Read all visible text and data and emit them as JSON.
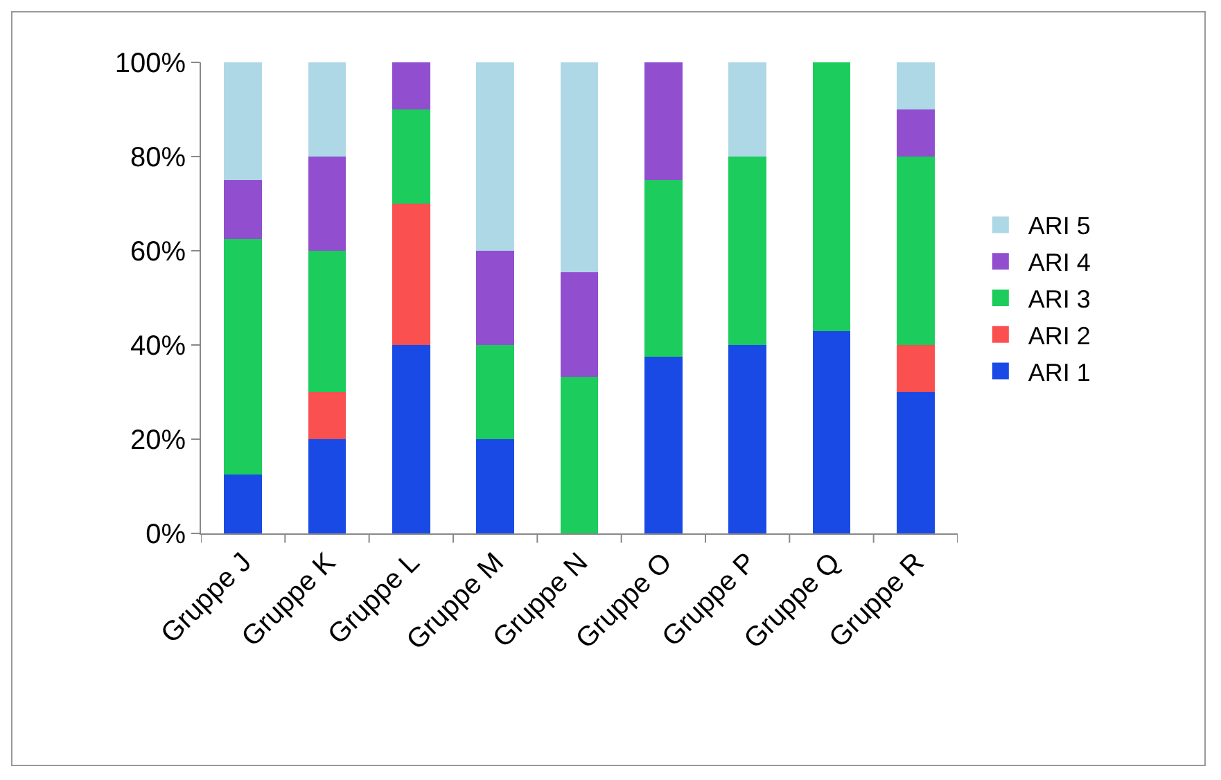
{
  "chart_data": {
    "type": "bar",
    "stacked": true,
    "categories": [
      "Gruppe J",
      "Gruppe K",
      "Gruppe L",
      "Gruppe M",
      "Gruppe N",
      "Gruppe O",
      "Gruppe P",
      "Gruppe Q",
      "Gruppe R"
    ],
    "series": [
      {
        "name": "ARI 1",
        "color": "#1a4ae6",
        "values": [
          12.5,
          20,
          40,
          20,
          0,
          37.5,
          40,
          42.9,
          30
        ]
      },
      {
        "name": "ARI 2",
        "color": "#fa5050",
        "values": [
          0,
          10,
          30,
          0,
          0,
          0,
          0,
          0,
          10
        ]
      },
      {
        "name": "ARI 3",
        "color": "#1ccc5c",
        "values": [
          50,
          30,
          20,
          20,
          33.3,
          37.5,
          40,
          57.1,
          40
        ]
      },
      {
        "name": "ARI 4",
        "color": "#914fcf",
        "values": [
          12.5,
          20,
          10,
          20,
          22.2,
          25,
          0,
          0,
          10
        ]
      },
      {
        "name": "ARI 5",
        "color": "#aed8e6",
        "values": [
          25,
          20,
          0,
          40,
          44.5,
          0,
          20,
          0,
          10
        ]
      }
    ],
    "ylim": [
      0,
      100
    ],
    "yticks": [
      {
        "value": 0,
        "label": "0%"
      },
      {
        "value": 20,
        "label": "20%"
      },
      {
        "value": 40,
        "label": "40%"
      },
      {
        "value": 60,
        "label": "60%"
      },
      {
        "value": 80,
        "label": "80%"
      },
      {
        "value": 100,
        "label": "100%"
      }
    ],
    "grid": false,
    "legend": "right"
  }
}
